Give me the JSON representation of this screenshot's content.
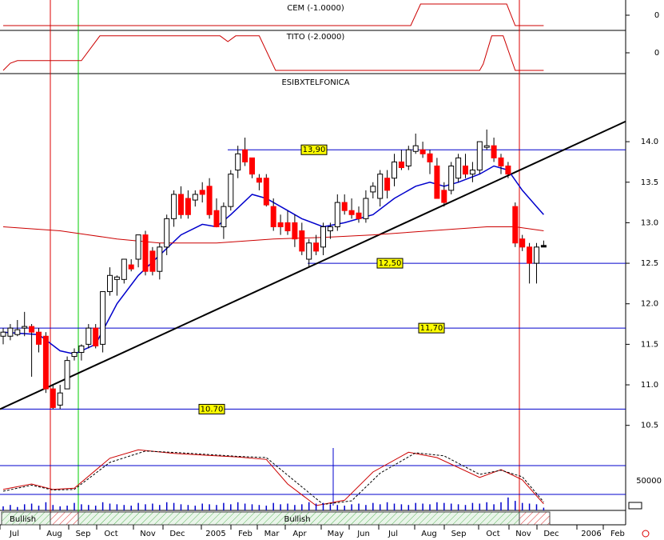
{
  "chart_data": {
    "type": "candlestick",
    "title": "ESIBXTELFONICA",
    "panels": [
      {
        "title": "CEM (-1.0000)",
        "yticks": [
          0
        ],
        "x": [
          0,
          57.3,
          58.7,
          70.8,
          72,
          76
        ],
        "values": [
          0,
          0,
          1,
          1,
          0,
          0
        ]
      },
      {
        "title": "TITO (-2.0000)",
        "yticks": [
          0
        ],
        "x": [
          0,
          1,
          2,
          11,
          13.6,
          30.5,
          31.6,
          32.7,
          36,
          38.3,
          67,
          67.5,
          68.7,
          70.3,
          72,
          76
        ],
        "values": [
          0,
          0.2,
          0.27,
          0.27,
          0.96,
          0.96,
          0.8,
          0.96,
          0.96,
          0,
          0,
          0.18,
          0.96,
          0.96,
          0,
          0
        ]
      }
    ],
    "ylim": [
      10.27,
      14.84
    ],
    "yticks": [
      {
        "value": 14,
        "label": "14.0"
      },
      {
        "value": 13.5,
        "label": "13.5"
      },
      {
        "value": 13,
        "label": "13.0"
      },
      {
        "value": 12.5,
        "label": "12.5"
      },
      {
        "value": 12,
        "label": "12.0"
      },
      {
        "value": 11.5,
        "label": "11.5"
      },
      {
        "value": 11,
        "label": "11.0"
      },
      {
        "value": 10.5,
        "label": "10.5"
      }
    ],
    "xlabels": [
      "Jul",
      "Aug",
      "Sep",
      "Oct",
      "Nov",
      "Dec",
      "2005",
      "Feb",
      "Mar",
      "Apr",
      "May",
      "Jun",
      "Jul",
      "Aug",
      "Sep",
      "Oct",
      "Nov",
      "Dec",
      "2006",
      "Feb"
    ],
    "candles": [
      [
        11.6,
        11.7,
        11.5,
        11.65
      ],
      [
        11.6,
        11.75,
        11.55,
        11.7
      ],
      [
        11.62,
        11.8,
        11.6,
        11.68
      ],
      [
        11.7,
        11.9,
        11.6,
        11.72
      ],
      [
        11.72,
        11.75,
        11.1,
        11.65
      ],
      [
        11.65,
        11.7,
        11.4,
        11.5
      ],
      [
        11.6,
        11.65,
        10.9,
        10.95
      ],
      [
        10.95,
        11,
        10.7,
        10.72
      ],
      [
        10.75,
        11,
        10.7,
        10.9
      ],
      [
        10.95,
        11.35,
        10.95,
        11.3
      ],
      [
        11.35,
        11.45,
        11.3,
        11.4
      ],
      [
        11.4,
        11.5,
        11.3,
        11.48
      ],
      [
        11.5,
        11.75,
        11.45,
        11.7
      ],
      [
        11.7,
        11.75,
        11.45,
        11.48
      ],
      [
        11.5,
        12.15,
        11.4,
        12.15
      ],
      [
        12.15,
        12.45,
        12.1,
        12.35
      ],
      [
        12.3,
        12.35,
        12.1,
        12.33
      ],
      [
        12.3,
        12.55,
        12.25,
        12.55
      ],
      [
        12.48,
        12.55,
        12.4,
        12.43
      ],
      [
        12.55,
        12.85,
        12.45,
        12.85
      ],
      [
        12.85,
        12.9,
        12.35,
        12.4
      ],
      [
        12.65,
        12.7,
        12.35,
        12.4
      ],
      [
        12.4,
        12.75,
        12.3,
        12.7
      ],
      [
        12.7,
        13.1,
        12.6,
        13.05
      ],
      [
        13.05,
        13.4,
        12.95,
        13.35
      ],
      [
        13.35,
        13.45,
        13.05,
        13.1
      ],
      [
        13.3,
        13.4,
        13.05,
        13.1
      ],
      [
        13.28,
        13.4,
        13.2,
        13.35
      ],
      [
        13.4,
        13.5,
        13.25,
        13.35
      ],
      [
        13.45,
        13.55,
        13.05,
        13.1
      ],
      [
        13.15,
        13.3,
        12.95,
        12.95
      ],
      [
        12.95,
        13.25,
        12.8,
        13.2
      ],
      [
        13.2,
        13.65,
        13.15,
        13.6
      ],
      [
        13.65,
        13.95,
        13.55,
        13.85
      ],
      [
        13.9,
        14.05,
        13.7,
        13.75
      ],
      [
        13.8,
        13.8,
        13.55,
        13.6
      ],
      [
        13.55,
        13.6,
        13.4,
        13.5
      ],
      [
        13.55,
        13.6,
        13.2,
        13.22
      ],
      [
        13.2,
        13.3,
        12.9,
        12.95
      ],
      [
        13,
        13.1,
        12.85,
        12.95
      ],
      [
        13,
        13.15,
        12.85,
        12.9
      ],
      [
        13,
        13.1,
        12.7,
        12.8
      ],
      [
        12.9,
        13,
        12.6,
        12.65
      ],
      [
        12.55,
        12.8,
        12.45,
        12.75
      ],
      [
        12.75,
        12.85,
        12.6,
        12.65
      ],
      [
        12.7,
        13,
        12.6,
        12.95
      ],
      [
        12.9,
        13,
        12.8,
        12.95
      ],
      [
        12.95,
        13.35,
        12.9,
        13.25
      ],
      [
        13.25,
        13.35,
        13.1,
        13.15
      ],
      [
        13.15,
        13.3,
        13.05,
        13.1
      ],
      [
        13.12,
        13.2,
        13,
        13.05
      ],
      [
        13.05,
        13.4,
        13,
        13.3
      ],
      [
        13.38,
        13.5,
        13.3,
        13.45
      ],
      [
        13.3,
        13.65,
        13.2,
        13.6
      ],
      [
        13.55,
        13.65,
        13.3,
        13.4
      ],
      [
        13.55,
        13.85,
        13.45,
        13.75
      ],
      [
        13.75,
        13.9,
        13.65,
        13.68
      ],
      [
        13.7,
        13.95,
        13.65,
        13.9
      ],
      [
        13.88,
        14.1,
        13.85,
        13.95
      ],
      [
        13.9,
        14,
        13.8,
        13.85
      ],
      [
        13.85,
        13.9,
        13.6,
        13.75
      ],
      [
        13.7,
        13.8,
        13.3,
        13.3
      ],
      [
        13.4,
        13.5,
        13.2,
        13.25
      ],
      [
        13.4,
        13.75,
        13.35,
        13.7
      ],
      [
        13.55,
        13.85,
        13.5,
        13.8
      ],
      [
        13.7,
        13.85,
        13.55,
        13.6
      ],
      [
        13.6,
        13.75,
        13.5,
        13.65
      ],
      [
        13.65,
        14,
        13.6,
        14
      ],
      [
        13.95,
        14.15,
        13.9,
        13.95
      ],
      [
        13.95,
        14.05,
        13.75,
        13.8
      ],
      [
        13.8,
        13.85,
        13.6,
        13.7
      ],
      [
        13.7,
        13.75,
        13.55,
        13.6
      ],
      [
        13.2,
        13.25,
        12.7,
        12.75
      ],
      [
        12.8,
        12.85,
        12.65,
        12.7
      ],
      [
        12.7,
        12.75,
        12.25,
        12.5
      ],
      [
        12.5,
        12.75,
        12.25,
        12.7
      ],
      [
        12.7,
        12.78,
        12.7,
        12.72
      ]
    ],
    "series": [
      {
        "color": "#0000cc",
        "x": [
          0,
          5,
          8,
          10,
          13,
          16,
          19,
          22,
          25,
          28,
          30,
          32,
          35,
          37,
          40,
          42,
          45,
          48,
          52,
          55,
          58,
          60,
          62,
          64,
          67,
          69,
          71,
          73,
          75,
          76
        ],
        "values": [
          11.65,
          11.62,
          11.42,
          11.38,
          11.5,
          12,
          12.35,
          12.6,
          12.85,
          12.98,
          12.95,
          13.1,
          13.35,
          13.3,
          13.15,
          13.05,
          12.95,
          13,
          13.1,
          13.3,
          13.45,
          13.5,
          13.45,
          13.5,
          13.6,
          13.7,
          13.65,
          13.4,
          13.2,
          13.1
        ]
      },
      {
        "color": "#cc0000",
        "x": [
          0,
          8,
          12,
          16,
          22,
          30,
          38,
          45,
          52,
          60,
          68,
          72,
          76
        ],
        "values": [
          12.95,
          12.9,
          12.85,
          12.8,
          12.75,
          12.75,
          12.8,
          12.82,
          12.85,
          12.9,
          12.95,
          12.95,
          12.9
        ]
      }
    ],
    "levels": [
      {
        "value": 13.9,
        "label": "13,90"
      },
      {
        "value": 12.5,
        "label": "12,50"
      },
      {
        "value": 11.7,
        "label": "11,70"
      },
      {
        "value": 10.7,
        "label": "10.70"
      }
    ],
    "trendline": [
      10.7,
      14.25
    ],
    "oscillator": [
      {
        "color": "#cc0000",
        "x": [
          0,
          4,
          7,
          10,
          15,
          19,
          24,
          33,
          37,
          40,
          44,
          48,
          52,
          57,
          61,
          67,
          70,
          73,
          76
        ],
        "values": [
          31,
          40,
          31,
          33,
          83,
          97,
          91,
          85,
          81,
          40,
          4,
          13,
          60,
          93,
          84,
          51,
          64,
          47,
          7
        ]
      },
      {
        "color": "#000000",
        "dashed": true,
        "x": [
          0,
          4,
          7,
          10,
          15,
          20,
          25,
          33,
          37,
          41,
          45,
          49,
          53,
          58,
          62,
          67,
          70,
          73,
          76
        ],
        "values": [
          28,
          38,
          30,
          31,
          76,
          95,
          92,
          86,
          84,
          45,
          6,
          12,
          58,
          92,
          87,
          56,
          63,
          52,
          10
        ]
      }
    ],
    "volume_tick": 50000,
    "volume": [
      30,
      40,
      25,
      45,
      50,
      35,
      60,
      40,
      30,
      35,
      55,
      45,
      40,
      35,
      60,
      50,
      45,
      40,
      35,
      55,
      45,
      50,
      40,
      60,
      55,
      45,
      40,
      35,
      50,
      45,
      40,
      55,
      45,
      60,
      50,
      45,
      40,
      35,
      55,
      45,
      50,
      40,
      45,
      60,
      50,
      55,
      45,
      40,
      35,
      45,
      50,
      40,
      55,
      45,
      60,
      50,
      45,
      40,
      55,
      50,
      45,
      60,
      55,
      50,
      45,
      40,
      55,
      50,
      60,
      45,
      60,
      95,
      70,
      55,
      50,
      45,
      20
    ],
    "signals": [
      "Bullish",
      "Bullish"
    ]
  }
}
